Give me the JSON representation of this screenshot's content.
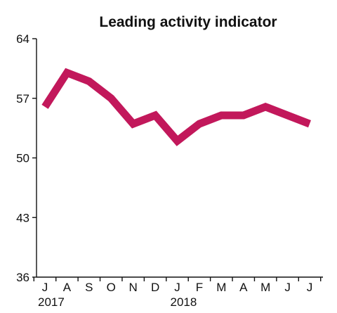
{
  "chart_data": {
    "type": "line",
    "title": "Leading activity indicator",
    "xlabel": "",
    "ylabel": "",
    "categories": [
      "J",
      "A",
      "S",
      "O",
      "N",
      "D",
      "J",
      "F",
      "M",
      "A",
      "M",
      "J",
      "J"
    ],
    "year_labels": [
      {
        "label": "2017",
        "index": 0
      },
      {
        "label": "2018",
        "index": 6
      }
    ],
    "series": [
      {
        "values": [
          56,
          60,
          59,
          57,
          54,
          55,
          52,
          54,
          55,
          55,
          56,
          55,
          54
        ],
        "color": "#c2185b"
      }
    ],
    "ylim": [
      36,
      64
    ],
    "yticks": [
      36,
      43,
      50,
      57,
      64
    ],
    "grid": false,
    "legend": "none"
  }
}
